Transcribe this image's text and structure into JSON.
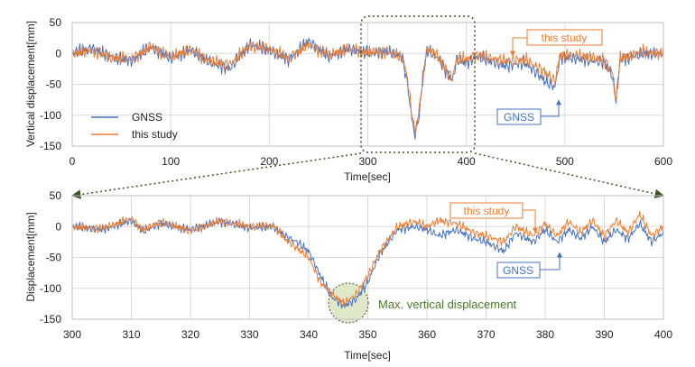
{
  "colors": {
    "gnss": "#4472c4",
    "study": "#ed7d31",
    "grid": "#d9d9d9",
    "zoom_box": "#375623",
    "ellipse_fill": "#dfe8c8",
    "annotation_text": "#4a7a2a"
  },
  "chart_data": [
    {
      "type": "line",
      "title": "",
      "xlabel": "Time[sec]",
      "ylabel": "Vertical displacement[mm]",
      "xlim": [
        0,
        600
      ],
      "ylim": [
        -150,
        50
      ],
      "xticks": [
        "0",
        "100",
        "200",
        "300",
        "400",
        "500",
        "600"
      ],
      "yticks": [
        "50",
        "0",
        "-50",
        "-100",
        "-150"
      ],
      "grid": true,
      "legend": {
        "position": "bottom-left",
        "entries": [
          "GNSS",
          "this study"
        ]
      },
      "series": [
        {
          "name": "GNSS",
          "points": [
            [
              0,
              0
            ],
            [
              20,
              8
            ],
            [
              40,
              -5
            ],
            [
              60,
              -12
            ],
            [
              80,
              10
            ],
            [
              100,
              -8
            ],
            [
              120,
              6
            ],
            [
              140,
              -15
            ],
            [
              160,
              -25
            ],
            [
              180,
              15
            ],
            [
              200,
              5
            ],
            [
              220,
              -10
            ],
            [
              240,
              20
            ],
            [
              260,
              -5
            ],
            [
              280,
              8
            ],
            [
              300,
              0
            ],
            [
              320,
              3
            ],
            [
              335,
              -5
            ],
            [
              340,
              -45
            ],
            [
              345,
              -110
            ],
            [
              348,
              -133
            ],
            [
              352,
              -100
            ],
            [
              356,
              -40
            ],
            [
              360,
              5
            ],
            [
              370,
              -5
            ],
            [
              380,
              -30
            ],
            [
              386,
              -45
            ],
            [
              390,
              -10
            ],
            [
              400,
              -15
            ],
            [
              410,
              -5
            ],
            [
              420,
              -10
            ],
            [
              440,
              -20
            ],
            [
              460,
              -15
            ],
            [
              480,
              -45
            ],
            [
              490,
              -55
            ],
            [
              495,
              -5
            ],
            [
              520,
              -10
            ],
            [
              540,
              -15
            ],
            [
              548,
              -35
            ],
            [
              552,
              -75
            ],
            [
              556,
              -10
            ],
            [
              580,
              0
            ],
            [
              600,
              0
            ]
          ]
        },
        {
          "name": "this study",
          "points": [
            [
              0,
              0
            ],
            [
              20,
              6
            ],
            [
              40,
              -8
            ],
            [
              60,
              -10
            ],
            [
              80,
              12
            ],
            [
              100,
              -6
            ],
            [
              120,
              5
            ],
            [
              140,
              -12
            ],
            [
              160,
              -18
            ],
            [
              180,
              12
            ],
            [
              200,
              8
            ],
            [
              220,
              -8
            ],
            [
              240,
              15
            ],
            [
              260,
              -3
            ],
            [
              280,
              6
            ],
            [
              300,
              2
            ],
            [
              320,
              4
            ],
            [
              335,
              -8
            ],
            [
              340,
              -40
            ],
            [
              345,
              -100
            ],
            [
              348,
              -128
            ],
            [
              352,
              -95
            ],
            [
              356,
              -35
            ],
            [
              360,
              8
            ],
            [
              370,
              -2
            ],
            [
              380,
              -28
            ],
            [
              386,
              -40
            ],
            [
              390,
              -8
            ],
            [
              400,
              -10
            ],
            [
              410,
              -2
            ],
            [
              420,
              -6
            ],
            [
              440,
              -12
            ],
            [
              460,
              -10
            ],
            [
              480,
              -30
            ],
            [
              490,
              -45
            ],
            [
              495,
              -3
            ],
            [
              520,
              -5
            ],
            [
              540,
              -10
            ],
            [
              548,
              -30
            ],
            [
              552,
              -80
            ],
            [
              556,
              -8
            ],
            [
              580,
              2
            ],
            [
              600,
              0
            ]
          ]
        }
      ],
      "annotations": {
        "study_callout": "this study",
        "gnss_callout": "GNSS"
      },
      "zoom_region": [
        300,
        400
      ]
    },
    {
      "type": "line",
      "title": "",
      "xlabel": "Time[sec]",
      "ylabel": "Displacement[mm]",
      "xlim": [
        300,
        400
      ],
      "ylim": [
        -150,
        50
      ],
      "xticks": [
        "300",
        "310",
        "320",
        "330",
        "340",
        "350",
        "360",
        "370",
        "380",
        "390",
        "400"
      ],
      "yticks": [
        "50",
        "0",
        "-50",
        "-100",
        "-150"
      ],
      "grid": true,
      "series": [
        {
          "name": "GNSS",
          "points": [
            [
              300,
              0
            ],
            [
              305,
              -5
            ],
            [
              310,
              10
            ],
            [
              312,
              -8
            ],
            [
              315,
              5
            ],
            [
              320,
              -5
            ],
            [
              325,
              8
            ],
            [
              330,
              -2
            ],
            [
              334,
              0
            ],
            [
              336,
              -15
            ],
            [
              338,
              -25
            ],
            [
              340,
              -40
            ],
            [
              342,
              -80
            ],
            [
              344,
              -115
            ],
            [
              346,
              -128
            ],
            [
              348,
              -118
            ],
            [
              350,
              -90
            ],
            [
              352,
              -45
            ],
            [
              355,
              -5
            ],
            [
              358,
              0
            ],
            [
              360,
              -5
            ],
            [
              362,
              -15
            ],
            [
              365,
              -5
            ],
            [
              368,
              -20
            ],
            [
              370,
              -25
            ],
            [
              373,
              -40
            ],
            [
              375,
              -10
            ],
            [
              378,
              -25
            ],
            [
              380,
              -5
            ],
            [
              382,
              -25
            ],
            [
              384,
              -5
            ],
            [
              386,
              -20
            ],
            [
              388,
              0
            ],
            [
              390,
              -25
            ],
            [
              392,
              -5
            ],
            [
              394,
              -20
            ],
            [
              396,
              5
            ],
            [
              398,
              -25
            ],
            [
              400,
              -10
            ]
          ]
        },
        {
          "name": "this study",
          "points": [
            [
              300,
              0
            ],
            [
              305,
              -3
            ],
            [
              310,
              12
            ],
            [
              312,
              -5
            ],
            [
              315,
              8
            ],
            [
              320,
              -8
            ],
            [
              325,
              10
            ],
            [
              330,
              0
            ],
            [
              334,
              2
            ],
            [
              336,
              -20
            ],
            [
              338,
              -35
            ],
            [
              340,
              -50
            ],
            [
              342,
              -90
            ],
            [
              344,
              -110
            ],
            [
              346,
              -125
            ],
            [
              348,
              -110
            ],
            [
              350,
              -80
            ],
            [
              352,
              -40
            ],
            [
              355,
              0
            ],
            [
              358,
              8
            ],
            [
              360,
              0
            ],
            [
              362,
              10
            ],
            [
              365,
              5
            ],
            [
              368,
              -10
            ],
            [
              370,
              -15
            ],
            [
              373,
              -25
            ],
            [
              375,
              0
            ],
            [
              378,
              -15
            ],
            [
              380,
              5
            ],
            [
              382,
              -15
            ],
            [
              384,
              8
            ],
            [
              386,
              -10
            ],
            [
              388,
              10
            ],
            [
              390,
              -15
            ],
            [
              392,
              10
            ],
            [
              394,
              -10
            ],
            [
              396,
              20
            ],
            [
              398,
              -15
            ],
            [
              400,
              0
            ]
          ]
        }
      ],
      "annotations": {
        "study_callout": "this study",
        "gnss_callout": "GNSS",
        "max_label": "Max. vertical displacement"
      }
    }
  ]
}
